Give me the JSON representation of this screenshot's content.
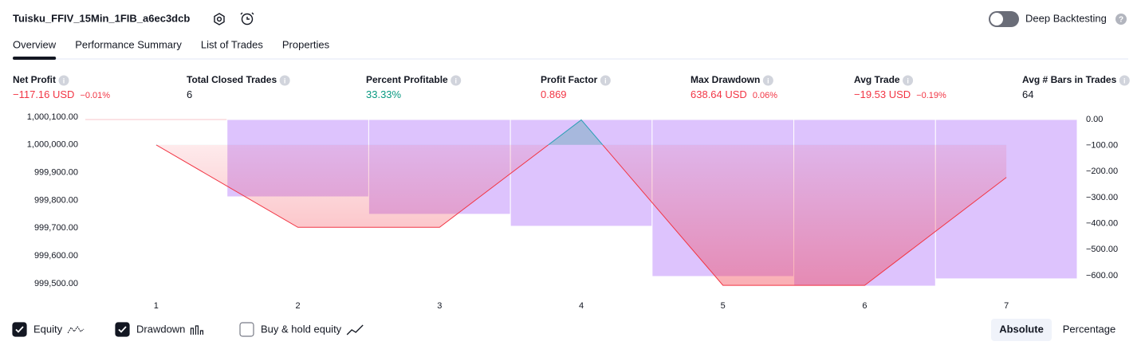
{
  "header": {
    "title": "Tuisku_FFIV_15Min_1FIB_a6ec3dcb",
    "toggle": "Deep Backtesting",
    "toggle_on": false
  },
  "tabs": [
    "Overview",
    "Performance Summary",
    "List of Trades",
    "Properties"
  ],
  "active_tab": 0,
  "metrics": [
    {
      "label": "Net Profit",
      "value": "−117.16 USD",
      "extra": "−0.01%",
      "color": "#f23645"
    },
    {
      "label": "Total Closed Trades",
      "value": "6",
      "color": "#131722"
    },
    {
      "label": "Percent Profitable",
      "value": "33.33%",
      "color": "#089981"
    },
    {
      "label": "Profit Factor",
      "value": "0.869",
      "color": "#f23645"
    },
    {
      "label": "Max Drawdown",
      "value": "638.64 USD",
      "extra": "0.06%",
      "color": "#f23645"
    },
    {
      "label": "Avg Trade",
      "value": "−19.53 USD",
      "extra": "−0.19%",
      "color": "#f23645"
    },
    {
      "label": "Avg # Bars in Trades",
      "value": "64",
      "color": "#131722"
    }
  ],
  "chart_data": {
    "type": "combo",
    "categories": [
      "1",
      "2",
      "3",
      "4",
      "5",
      "6",
      "7"
    ],
    "series": [
      {
        "name": "Equity",
        "type": "line",
        "color": "#f23645",
        "visible": true,
        "values": [
          1000000,
          999703,
          999703,
          1000090,
          999494,
          999494,
          999882.84
        ]
      },
      {
        "name": "Drawdown",
        "type": "bar",
        "axis": "y2",
        "color": "#dcc0fd",
        "visible": true,
        "values": [
          null,
          -297,
          -364,
          -410,
          -603,
          -640,
          -612
        ]
      }
    ],
    "ylim": [
      999500,
      1000100
    ],
    "yticks": [
      {
        "value": 1000100,
        "label": "1,000,100.00"
      },
      {
        "value": 1000000,
        "label": "1,000,000.00"
      },
      {
        "value": 999900,
        "label": "999,900.00"
      },
      {
        "value": 999800,
        "label": "999,800.00"
      },
      {
        "value": 999700,
        "label": "999,700.00"
      },
      {
        "value": 999600,
        "label": "999,600.00"
      },
      {
        "value": 999500,
        "label": "999,500.00"
      }
    ],
    "y2lim": [
      -600,
      0
    ],
    "y2ticks": [
      {
        "value": 0,
        "label": "0.00"
      },
      {
        "value": -100,
        "label": "−100.00"
      },
      {
        "value": -200,
        "label": "−200.00"
      },
      {
        "value": -300,
        "label": "−300.00"
      },
      {
        "value": -400,
        "label": "−400.00"
      },
      {
        "value": -500,
        "label": "−500.00"
      },
      {
        "value": -600,
        "label": "−600.00"
      }
    ],
    "grid": false
  },
  "extra_legend": {
    "label": "Buy & hold equity",
    "checked": false
  },
  "buttons": [
    "Absolute",
    "Percentage"
  ],
  "active_button": 0
}
